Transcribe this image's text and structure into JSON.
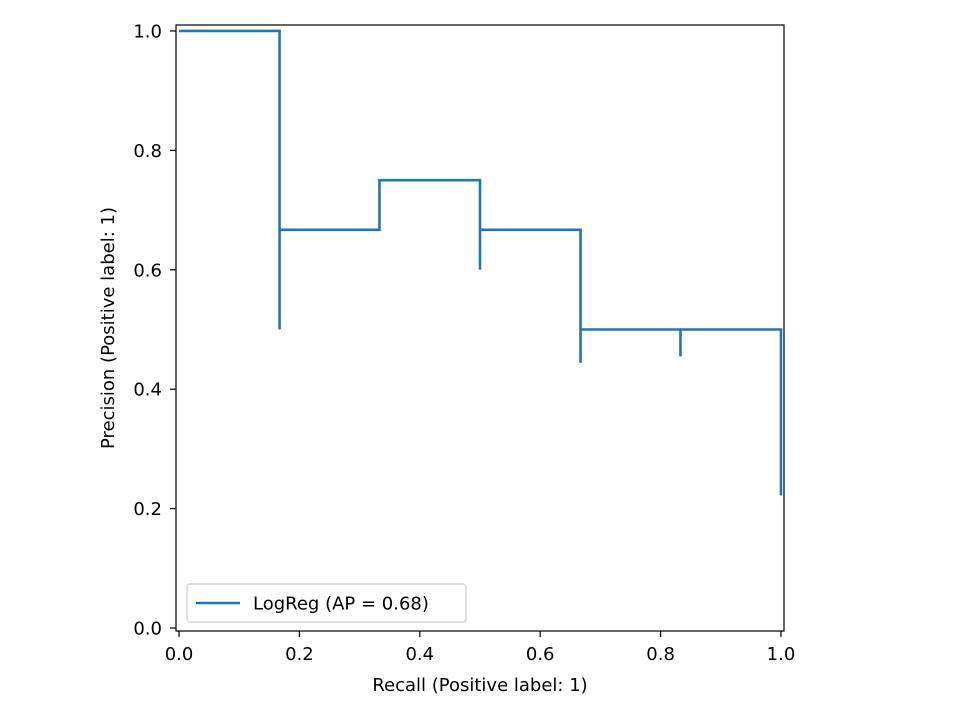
{
  "chart_data": {
    "type": "line",
    "title": "",
    "xlabel": "Recall (Positive label: 1)",
    "ylabel": "Precision (Positive label: 1)",
    "xlim": [
      -0.005,
      1.005
    ],
    "ylim": [
      -0.005,
      1.01
    ],
    "grid": false,
    "legend_location": "lower left",
    "x_ticks": [
      0.0,
      0.2,
      0.4,
      0.6,
      0.8,
      1.0
    ],
    "x_tick_labels": [
      "0.0",
      "0.2",
      "0.4",
      "0.6",
      "0.8",
      "1.0"
    ],
    "y_ticks": [
      0.0,
      0.2,
      0.4,
      0.6,
      0.8,
      1.0
    ],
    "y_tick_labels": [
      "0.0",
      "0.2",
      "0.4",
      "0.6",
      "0.8",
      "1.0"
    ],
    "drawstyle": "steps-post",
    "series": [
      {
        "name": "LogReg (AP = 0.68)",
        "color": "#1f77b4",
        "points": [
          {
            "recall": 1.0,
            "precision": 0.222
          },
          {
            "recall": 1.0,
            "precision": 0.5
          },
          {
            "recall": 0.833,
            "precision": 0.455
          },
          {
            "recall": 0.833,
            "precision": 0.5
          },
          {
            "recall": 0.667,
            "precision": 0.444
          },
          {
            "recall": 0.667,
            "precision": 0.5
          },
          {
            "recall": 0.667,
            "precision": 0.667
          },
          {
            "recall": 0.5,
            "precision": 0.6
          },
          {
            "recall": 0.5,
            "precision": 0.667
          },
          {
            "recall": 0.5,
            "precision": 0.75
          },
          {
            "recall": 0.333,
            "precision": 0.667
          },
          {
            "recall": 0.167,
            "precision": 0.5
          },
          {
            "recall": 0.167,
            "precision": 0.667
          },
          {
            "recall": 0.167,
            "precision": 1.0
          },
          {
            "recall": 0.0,
            "precision": 1.0
          }
        ]
      }
    ]
  }
}
